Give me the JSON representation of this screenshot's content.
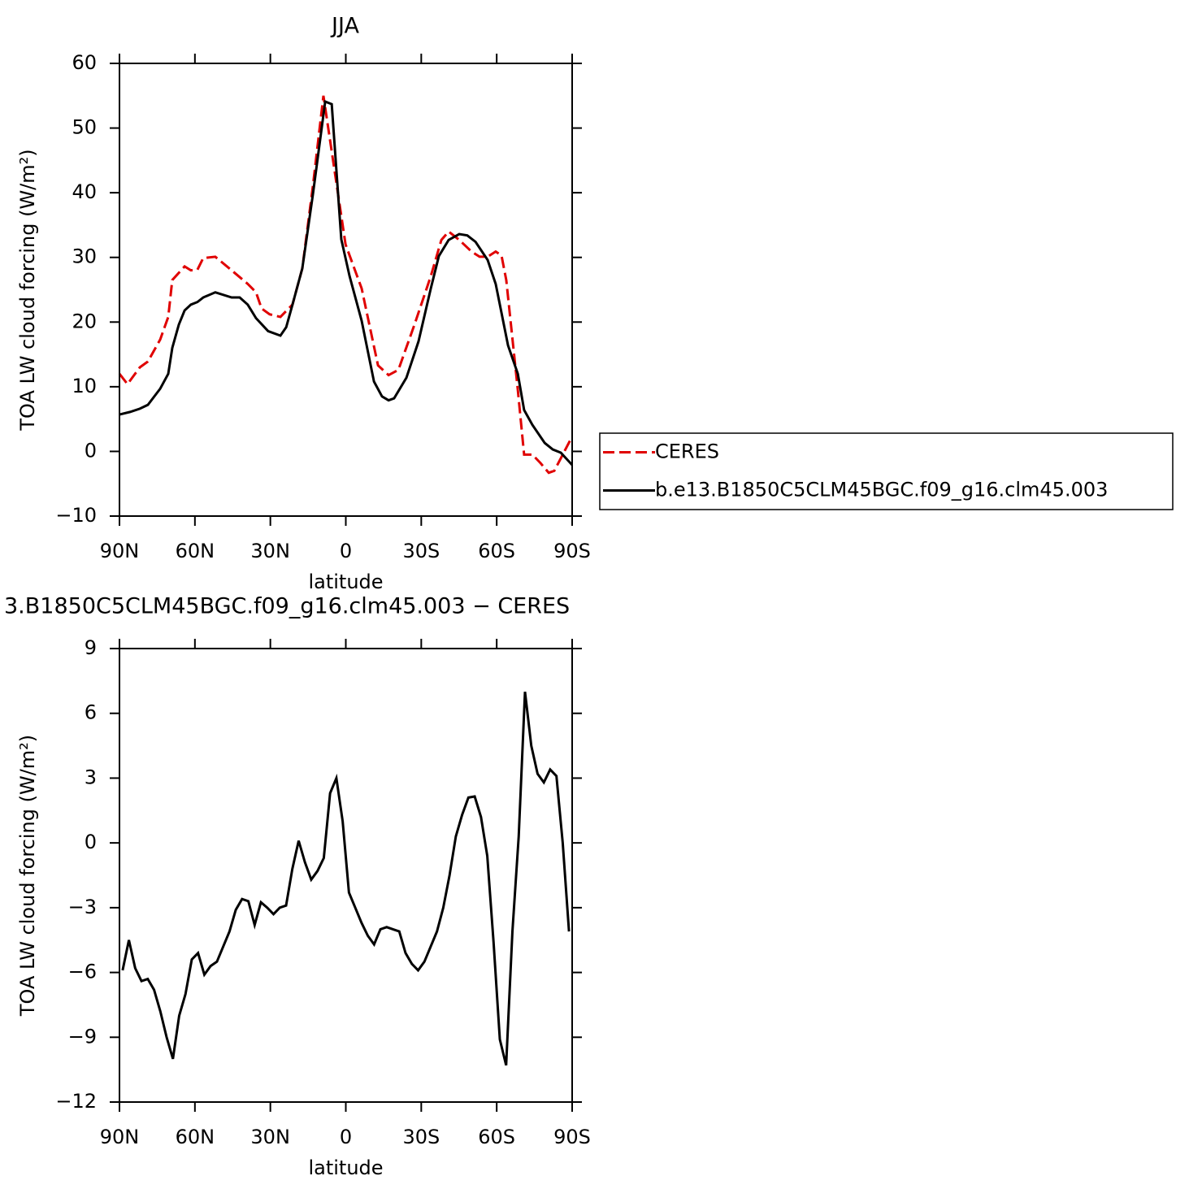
{
  "chart_data": [
    {
      "type": "line",
      "title": "JJA",
      "xlabel": "latitude",
      "ylabel": "TOA LW cloud forcing (W/m²)",
      "xlim": [
        90,
        -90
      ],
      "xticks": [
        {
          "value": 90,
          "label": "90N"
        },
        {
          "value": 60,
          "label": "60N"
        },
        {
          "value": 30,
          "label": "30N"
        },
        0,
        {
          "value": -30,
          "label": "30S"
        },
        {
          "value": -60,
          "label": "60S"
        },
        {
          "value": -90,
          "label": "90S"
        }
      ],
      "ylim": [
        -10,
        60
      ],
      "yticks": [
        {
          "value": -10,
          "label": "−10"
        },
        0,
        10,
        20,
        30,
        40,
        50,
        60
      ],
      "legend": "right",
      "series": [
        {
          "name": "CERES",
          "color": "#e00000",
          "dash": true,
          "x": [
            90,
            86.8,
            81.9,
            78.7,
            73.8,
            70.6,
            69,
            64.1,
            61.6,
            59,
            56.7,
            51.9,
            45.4,
            39,
            35.7,
            33.5,
            30.3,
            26,
            21.2,
            17.3,
            13.1,
            8.9,
            0.1,
            -6.3,
            -12.8,
            -17,
            -20.9,
            -27.3,
            -33.8,
            -38,
            -40.9,
            -45.1,
            -50,
            -53.2,
            -56.4,
            -59.6,
            -61.9,
            -63.8,
            -68.4,
            -70.9,
            -74.2,
            -77.4,
            -80.7,
            -82.9,
            -90
          ],
          "values": [
            12,
            10.4,
            13,
            13.9,
            17.3,
            20.8,
            26.5,
            28.6,
            28,
            28.1,
            29.9,
            30.1,
            28,
            25.9,
            24.6,
            22.1,
            21.2,
            20.8,
            22.7,
            28.3,
            41,
            55,
            32,
            25.2,
            13.3,
            11.8,
            12.6,
            19.6,
            27.1,
            32.7,
            34,
            32.7,
            30.9,
            30.1,
            30.1,
            30.9,
            30.3,
            26.5,
            9.5,
            -0.5,
            -0.5,
            -1.8,
            -3.3,
            -3,
            2.3
          ]
        },
        {
          "name": "b.e13.B1850C5CLM45BGC.f09_g16.clm45.003",
          "color": "#000000",
          "dash": false,
          "x": [
            90,
            85.8,
            81.9,
            78.7,
            73.8,
            70.6,
            69,
            66.4,
            64.1,
            61.6,
            59,
            56.7,
            51.9,
            45.4,
            42.2,
            39,
            35.7,
            30.9,
            26,
            23.7,
            21.2,
            17.3,
            13.1,
            8.2,
            5.6,
            1.8,
            -1.5,
            -6.3,
            -11.2,
            -14.4,
            -17,
            -19.2,
            -24.1,
            -28.9,
            -33.8,
            -37,
            -40.9,
            -45.1,
            -48.3,
            -51.6,
            -56.4,
            -59.6,
            -64.5,
            -68.4,
            -70.9,
            -74.2,
            -79.1,
            -82.3,
            -85.5,
            -90
          ],
          "values": [
            5.7,
            6.1,
            6.6,
            7.2,
            9.7,
            12,
            16,
            19.6,
            21.8,
            22.7,
            23.1,
            23.8,
            24.6,
            23.8,
            23.8,
            22.7,
            20.6,
            18.6,
            17.9,
            19.2,
            22.7,
            28.3,
            39.7,
            54.1,
            53.7,
            32.8,
            27.1,
            20.2,
            10.8,
            8.5,
            7.9,
            8.2,
            11.4,
            17,
            25.2,
            30.2,
            32.7,
            33.6,
            33.4,
            32.4,
            29.6,
            25.9,
            16.4,
            12,
            6.4,
            4.1,
            1.3,
            0.3,
            -0.2,
            -2.1
          ]
        }
      ]
    },
    {
      "type": "line",
      "title": "3.B1850C5CLM45BGC.f09_g16.clm45.003 − CERES",
      "xlabel": "latitude",
      "ylabel": "TOA LW cloud forcing (W/m²)",
      "xlim": [
        90,
        -90
      ],
      "xticks": [
        {
          "value": 90,
          "label": "90N"
        },
        {
          "value": 60,
          "label": "60N"
        },
        {
          "value": 30,
          "label": "30N"
        },
        0,
        {
          "value": -30,
          "label": "30S"
        },
        {
          "value": -60,
          "label": "60S"
        },
        {
          "value": -90,
          "label": "90S"
        }
      ],
      "ylim": [
        -12,
        9
      ],
      "yticks": [
        {
          "value": -12,
          "label": "−12"
        },
        {
          "value": -9,
          "label": "−9"
        },
        {
          "value": -6,
          "label": "−6"
        },
        {
          "value": -3,
          "label": "−3"
        },
        0,
        3,
        6,
        9
      ],
      "series": [
        {
          "color": "#000000",
          "dash": false,
          "x": [
            88.75,
            86.25,
            83.75,
            81.25,
            78.75,
            76.25,
            73.75,
            71.25,
            68.75,
            66.25,
            63.75,
            61.25,
            58.75,
            56.25,
            53.75,
            51.25,
            48.75,
            46.25,
            43.75,
            41.25,
            38.75,
            36.25,
            33.75,
            31.25,
            28.75,
            26.25,
            23.75,
            21.25,
            18.75,
            16.25,
            13.75,
            11.25,
            8.75,
            6.25,
            3.75,
            1.25,
            -1.25,
            -3.75,
            -6.25,
            -8.75,
            -11.25,
            -13.75,
            -16.25,
            -18.75,
            -21.25,
            -23.75,
            -26.25,
            -28.75,
            -31.25,
            -33.75,
            -36.25,
            -38.75,
            -41.25,
            -43.75,
            -46.25,
            -48.75,
            -51.25,
            -53.75,
            -56.25,
            -58.75,
            -61.25,
            -63.75,
            -66.25,
            -68.75,
            -71.25,
            -73.75,
            -76.25,
            -78.75,
            -81.25,
            -83.75,
            -86.25,
            -88.75
          ],
          "values": [
            -5.9,
            -4.5,
            -5.8,
            -6.4,
            -6.3,
            -6.8,
            -7.8,
            -9.0,
            -10.0,
            -8.0,
            -7.0,
            -5.4,
            -5.1,
            -6.1,
            -5.7,
            -5.5,
            -4.8,
            -4.1,
            -3.1,
            -2.6,
            -2.7,
            -3.8,
            -2.75,
            -3.0,
            -3.3,
            -3.0,
            -2.9,
            -1.2,
            0.1,
            -0.9,
            -1.7,
            -1.3,
            -0.7,
            2.3,
            3.0,
            1.0,
            -2.3,
            -3.0,
            -3.7,
            -4.3,
            -4.7,
            -4.0,
            -3.9,
            -4.0,
            -4.1,
            -5.1,
            -5.6,
            -5.9,
            -5.5,
            -4.8,
            -4.1,
            -3.0,
            -1.5,
            0.3,
            1.3,
            2.1,
            2.15,
            1.2,
            -0.6,
            -4.6,
            -9.1,
            -10.3,
            -4.1,
            0.3,
            7.0,
            4.5,
            3.2,
            2.8,
            3.4,
            3.1,
            0,
            -4.1
          ]
        }
      ]
    }
  ]
}
